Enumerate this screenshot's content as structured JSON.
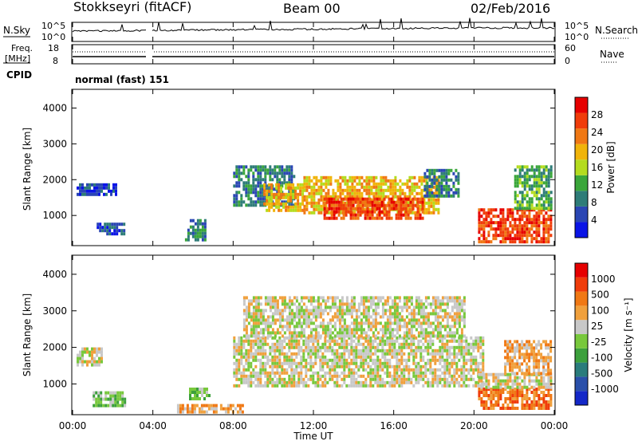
{
  "header": {
    "title": "Stokkseyri (fitACF)",
    "beam": "Beam 00",
    "date": "02/Feb/2016"
  },
  "nsky_panel": {
    "left_label": "N.Sky",
    "left_ticks": [
      "10^5",
      "10^0"
    ],
    "right_ticks": [
      "10^5",
      "10^0"
    ],
    "right_label": "N.Search"
  },
  "freq_panel": {
    "left_label_1": "Freq.",
    "left_label_2": "[MHz]",
    "left_ticks": [
      "18",
      "8"
    ],
    "right_ticks": [
      "60",
      "0"
    ],
    "right_label": "Nave"
  },
  "cpid": {
    "label": "CPID",
    "value": "normal (fast) 151"
  },
  "power_colorbar": {
    "label": "Power [dB]",
    "ticks": [
      "28",
      "24",
      "20",
      "16",
      "12",
      "8",
      "4"
    ],
    "colors": [
      "#0a14e6",
      "#2a46b4",
      "#2e7c78",
      "#3aa63a",
      "#b4dc1e",
      "#f0b40a",
      "#f07814",
      "#f03c0a",
      "#e60000"
    ]
  },
  "velocity_colorbar": {
    "label": "Velocity [m s⁻¹]",
    "ticks": [
      "1000",
      "500",
      "100",
      "25",
      "-25",
      "-100",
      "-500",
      "-1000"
    ],
    "colors": [
      "#1428c8",
      "#2a50aa",
      "#2a7c7c",
      "#3ca03c",
      "#78c83c",
      "#c8c8c8",
      "#f0a03c",
      "#f07814",
      "#f03c0a",
      "#e60000"
    ]
  },
  "chart_data": [
    {
      "type": "heatmap",
      "quantity": "power",
      "ylabel": "Slant Range [km]",
      "ylim": [
        180,
        4500
      ],
      "y_ticks": [
        "1000",
        "2000",
        "3000",
        "4000"
      ],
      "xlim_hours": [
        0,
        24
      ],
      "x_ticks": [
        "00:00",
        "04:00",
        "08:00",
        "12:00",
        "16:00",
        "20:00",
        "00:00"
      ],
      "regions": [
        {
          "t0": 0.2,
          "t1": 2.2,
          "r0": 1550,
          "r1": 1900,
          "level": 1
        },
        {
          "t0": 1.2,
          "t1": 2.6,
          "r0": 500,
          "r1": 800,
          "level": 1
        },
        {
          "t0": 5.6,
          "t1": 6.6,
          "r0": 350,
          "r1": 900,
          "level": 2
        },
        {
          "t0": 8.0,
          "t1": 11.0,
          "r0": 1300,
          "r1": 2400,
          "level": 2
        },
        {
          "t0": 9.5,
          "t1": 11.5,
          "r0": 1100,
          "r1": 1900,
          "level": 5
        },
        {
          "t0": 11.5,
          "t1": 18.2,
          "r0": 1100,
          "r1": 2100,
          "level": 5
        },
        {
          "t0": 12.5,
          "t1": 17.5,
          "r0": 900,
          "r1": 1500,
          "level": 7
        },
        {
          "t0": 17.5,
          "t1": 19.2,
          "r0": 1500,
          "r1": 2300,
          "level": 2
        },
        {
          "t0": 20.2,
          "t1": 23.8,
          "r0": 300,
          "r1": 1200,
          "level": 7
        },
        {
          "t0": 22.0,
          "t1": 23.8,
          "r0": 1200,
          "r1": 2400,
          "level": 3
        }
      ]
    },
    {
      "type": "heatmap",
      "quantity": "velocity",
      "ylabel": "Slant Range [km]",
      "xlabel": "Time UT",
      "ylim": [
        180,
        4500
      ],
      "y_ticks": [
        "1000",
        "2000",
        "3000",
        "4000"
      ],
      "xlim_hours": [
        0,
        24
      ],
      "x_ticks": [
        "00:00",
        "04:00",
        "08:00",
        "12:00",
        "16:00",
        "20:00",
        "00:00"
      ],
      "regions": [
        {
          "t0": 0.2,
          "t1": 1.5,
          "r0": 1550,
          "r1": 2000,
          "level": 5
        },
        {
          "t0": 1.0,
          "t1": 2.6,
          "r0": 450,
          "r1": 800,
          "level": 4
        },
        {
          "t0": 5.8,
          "t1": 6.8,
          "r0": 600,
          "r1": 900,
          "level": 4
        },
        {
          "t0": 5.2,
          "t1": 8.5,
          "r0": 200,
          "r1": 450,
          "level": 6
        },
        {
          "t0": 8.0,
          "t1": 20.5,
          "r0": 950,
          "r1": 2300,
          "level": 5
        },
        {
          "t0": 8.5,
          "t1": 19.5,
          "r0": 2300,
          "r1": 3400,
          "level": 5
        },
        {
          "t0": 20.2,
          "t1": 23.8,
          "r0": 300,
          "r1": 900,
          "level": 7
        },
        {
          "t0": 20.2,
          "t1": 23.8,
          "r0": 900,
          "r1": 1300,
          "level": 5
        },
        {
          "t0": 21.5,
          "t1": 23.8,
          "r0": 1300,
          "r1": 2200,
          "level": 6
        }
      ]
    }
  ]
}
